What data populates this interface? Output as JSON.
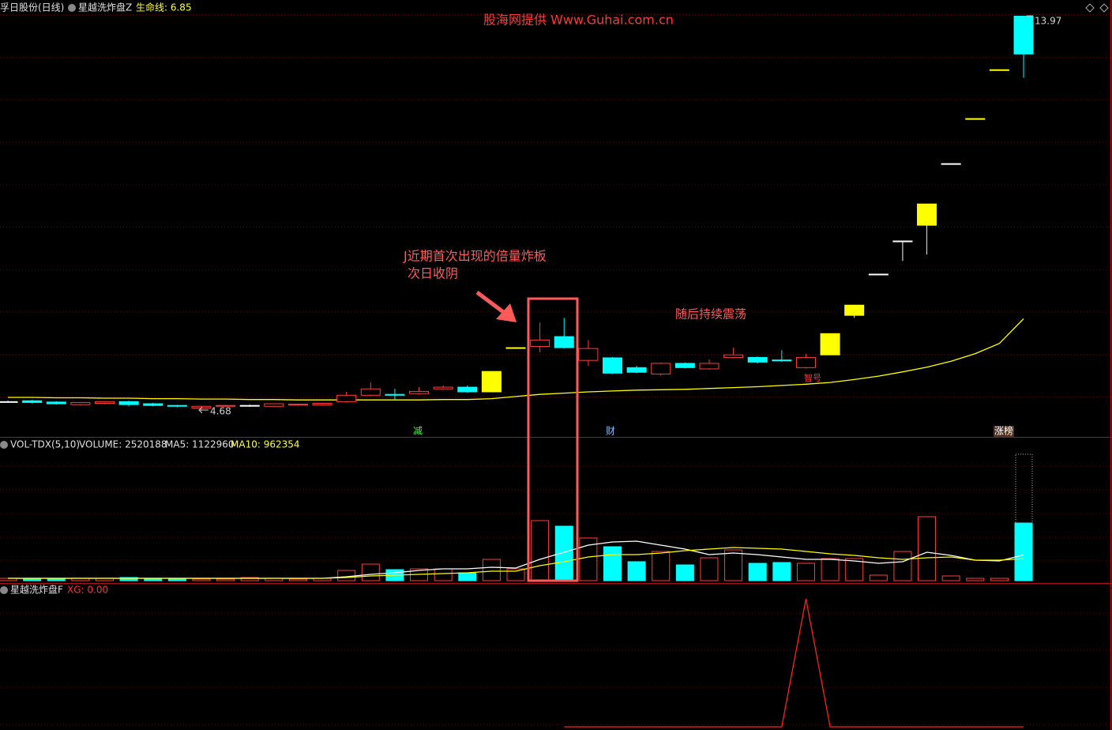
{
  "header": {
    "stock": "孚日股份(日线)",
    "indicator": "星越洗炸盘Z",
    "lifeline": "生命线: 6.85",
    "vol_name": "VOL-TDX(5,10)",
    "vol_volume": "VOLUME: 2520188",
    "vol_ma5": "MA5: 1122960",
    "vol_ma10": "MA10: 962354",
    "xg_name": "星越洗炸盘F",
    "xg_value": "XG: 0.00"
  },
  "annotations": {
    "source": "股海网提供  Www.Guhai.com.cn",
    "note1": "J近期首次出现的倍量炸板",
    "note2": "次日收阴",
    "note3": "随后持续震荡",
    "high": "13.97",
    "low": "4.68",
    "tag1": "减",
    "tag2": "财",
    "tag3": "涨榜",
    "tag4": "智号"
  },
  "chart_data": [
    {
      "type": "candlestick",
      "ylim": [
        4.07,
        14.35
      ],
      "open": [
        4.9,
        4.92,
        4.89,
        4.83,
        4.86,
        4.9,
        4.85,
        4.81,
        4.75,
        4.79,
        4.81,
        4.79,
        4.82,
        4.82,
        4.9,
        5.05,
        5.07,
        5.09,
        5.2,
        5.24,
        5.13,
        6.17,
        6.2,
        6.43,
        5.87,
        5.93,
        5.7,
        5.55,
        5.8,
        5.67,
        5.94,
        5.94,
        5.88,
        5.7,
        6.0,
        6.93,
        7.9,
        8.68,
        9.05,
        10.5,
        11.56,
        12.71,
        13.97
      ],
      "high": [
        4.92,
        4.94,
        4.91,
        4.89,
        4.91,
        4.92,
        4.87,
        4.82,
        4.8,
        4.82,
        4.83,
        4.86,
        4.85,
        4.87,
        5.13,
        5.35,
        5.2,
        5.24,
        5.28,
        5.28,
        5.61,
        6.17,
        6.76,
        6.87,
        6.35,
        5.95,
        5.74,
        5.82,
        5.82,
        5.89,
        6.17,
        5.96,
        6.11,
        6.02,
        6.5,
        7.17,
        7.9,
        8.68,
        9.55,
        10.5,
        11.56,
        12.71,
        13.97
      ],
      "low": [
        4.88,
        4.86,
        4.83,
        4.81,
        4.84,
        4.79,
        4.79,
        4.77,
        4.68,
        4.77,
        4.78,
        4.77,
        4.8,
        4.8,
        4.88,
        5.03,
        4.94,
        5.07,
        5.18,
        5.11,
        5.13,
        6.17,
        6.06,
        6.15,
        5.74,
        5.55,
        5.57,
        5.52,
        5.68,
        5.65,
        5.92,
        5.8,
        5.84,
        5.68,
        6.0,
        6.87,
        7.9,
        8.21,
        8.36,
        10.5,
        11.56,
        12.71,
        12.52
      ],
      "close": [
        4.9,
        4.88,
        4.85,
        4.88,
        4.9,
        4.83,
        4.81,
        4.79,
        4.79,
        4.81,
        4.81,
        4.85,
        4.84,
        4.86,
        5.05,
        5.2,
        5.05,
        5.14,
        5.24,
        5.13,
        5.61,
        6.17,
        6.35,
        6.17,
        6.15,
        5.57,
        5.59,
        5.8,
        5.7,
        5.8,
        6.0,
        5.83,
        5.86,
        5.94,
        6.5,
        7.17,
        7.9,
        8.68,
        9.55,
        10.5,
        11.56,
        12.71,
        13.08
      ],
      "colors": [
        "#ffffff",
        "#00ffff",
        "#00ffff",
        "#ff3c3c",
        "#ff3c3c",
        "#00ffff",
        "#00ffff",
        "#00ffff",
        "#ff3c3c",
        "#ff3c3c",
        "#ffffff",
        "#ff3c3c",
        "#ff3c3c",
        "#ff3c3c",
        "#ff3c3c",
        "#ff3c3c",
        "#00ffff",
        "#ff3c3c",
        "#ff3c3c",
        "#00ffff",
        "#ffff00",
        "#ffff00",
        "#ff3c3c",
        "#00ffff",
        "#ff3c3c",
        "#00ffff",
        "#00ffff",
        "#ff3c3c",
        "#00ffff",
        "#ff3c3c",
        "#ff3c3c",
        "#00ffff",
        "#00ffff",
        "#ff3c3c",
        "#ffff00",
        "#ffff00",
        "#ffffff",
        "#ffffff",
        "#ffff00",
        "#ffffff",
        "#ffff00",
        "#ffff00",
        "#00ffff"
      ],
      "series": [
        {
          "name": "生命线",
          "color": "#ffff00",
          "values": [
            5.0,
            5.0,
            4.99,
            4.99,
            4.98,
            4.98,
            4.97,
            4.97,
            4.96,
            4.96,
            4.95,
            4.95,
            4.94,
            4.94,
            4.94,
            4.94,
            4.94,
            4.94,
            4.95,
            4.95,
            4.97,
            5.02,
            5.07,
            5.1,
            5.13,
            5.15,
            5.17,
            5.18,
            5.19,
            5.21,
            5.23,
            5.25,
            5.28,
            5.31,
            5.35,
            5.42,
            5.5,
            5.6,
            5.71,
            5.85,
            6.03,
            6.27,
            6.85
          ]
        }
      ]
    },
    {
      "type": "bar",
      "ylim": [
        0,
        6214000
      ],
      "up_color": "#ff3c3c",
      "down_color": "#00ffff",
      "values": [
        104000,
        104000,
        104000,
        104000,
        104000,
        138000,
        104000,
        104000,
        69000,
        69000,
        138000,
        104000,
        69000,
        104000,
        449000,
        725000,
        483000,
        518000,
        518000,
        345000,
        932000,
        518000,
        2624000,
        2382000,
        1864000,
        1484000,
        829000,
        1277000,
        690000,
        1001000,
        1346000,
        760000,
        794000,
        760000,
        967000,
        967000,
        242000,
        1277000,
        2796000,
        207000,
        104000,
        104000,
        2520188
      ],
      "series": [
        {
          "name": "MA5",
          "color": "#ffffff",
          "values": [
            104000,
            104000,
            104000,
            104000,
            104000,
            104000,
            104000,
            104000,
            104000,
            104000,
            104000,
            104000,
            104000,
            104000,
            173000,
            276000,
            345000,
            449000,
            518000,
            518000,
            587000,
            552000,
            932000,
            1243000,
            1554000,
            1692000,
            1726000,
            1554000,
            1381000,
            1139000,
            1208000,
            1139000,
            1036000,
            932000,
            932000,
            863000,
            760000,
            829000,
            1243000,
            1105000,
            898000,
            863000,
            1122960
          ]
        },
        {
          "name": "MA10",
          "color": "#ffff00",
          "values": [
            104000,
            104000,
            104000,
            104000,
            104000,
            104000,
            104000,
            104000,
            104000,
            104000,
            104000,
            104000,
            104000,
            104000,
            138000,
            207000,
            242000,
            276000,
            311000,
            345000,
            414000,
            414000,
            656000,
            829000,
            1036000,
            1139000,
            1139000,
            1208000,
            1312000,
            1381000,
            1450000,
            1415000,
            1381000,
            1277000,
            1174000,
            1105000,
            1001000,
            932000,
            1001000,
            1036000,
            898000,
            898000,
            962354
          ]
        }
      ]
    },
    {
      "type": "line",
      "ylim": [
        -0.025,
        1.111
      ],
      "color": "#ff2020",
      "values": [
        null,
        null,
        null,
        null,
        null,
        null,
        null,
        null,
        null,
        null,
        null,
        null,
        null,
        null,
        null,
        null,
        null,
        null,
        null,
        null,
        null,
        null,
        null,
        0,
        0,
        0,
        0,
        0,
        0,
        0,
        0,
        0,
        0,
        1,
        0,
        0,
        0,
        0,
        0,
        0,
        0,
        0,
        0
      ]
    }
  ]
}
